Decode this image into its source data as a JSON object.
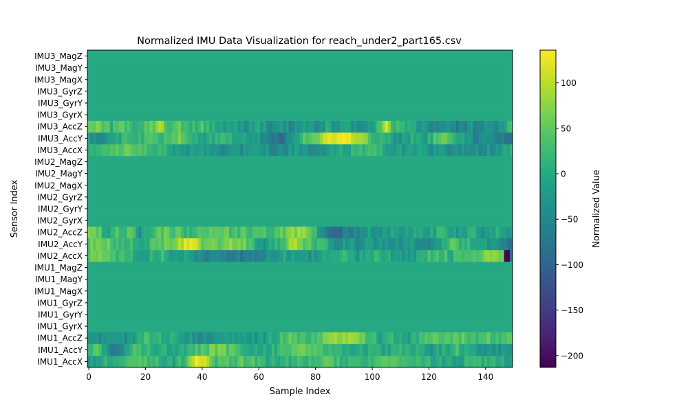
{
  "chart_data": {
    "type": "heatmap",
    "title": "Normalized IMU Data Visualization for reach_under2_part165.csv",
    "xlabel": "Sample Index",
    "ylabel": "Sensor Index",
    "colorbar_label": "Normalized Value",
    "colormap": "viridis",
    "x_range": [
      0,
      149
    ],
    "x_ticks": [
      0,
      20,
      40,
      60,
      80,
      100,
      120,
      140
    ],
    "color_range": [
      -213,
      136
    ],
    "colorbar_ticks": [
      100,
      50,
      0,
      -50,
      -100,
      -150,
      -200
    ],
    "num_samples": 150,
    "rows_bottom_to_top": [
      "IMU1_AccX",
      "IMU1_AccY",
      "IMU1_AccZ",
      "IMU1_GyrX",
      "IMU1_GyrY",
      "IMU1_GyrZ",
      "IMU1_MagX",
      "IMU1_MagY",
      "IMU1_MagZ",
      "IMU2_AccX",
      "IMU2_AccY",
      "IMU2_AccZ",
      "IMU2_GyrX",
      "IMU2_GyrY",
      "IMU2_GyrZ",
      "IMU2_MagX",
      "IMU2_MagY",
      "IMU2_MagZ",
      "IMU3_AccX",
      "IMU3_AccY",
      "IMU3_AccZ",
      "IMU3_GyrX",
      "IMU3_GyrY",
      "IMU3_GyrZ",
      "IMU3_MagX",
      "IMU3_MagY",
      "IMU3_MagZ"
    ],
    "constant_value": 0,
    "active_rows": {
      "IMU1_AccX": [
        [
          0,
          -20
        ],
        [
          5,
          0
        ],
        [
          10,
          25
        ],
        [
          20,
          35
        ],
        [
          25,
          15
        ],
        [
          30,
          0
        ],
        [
          35,
          40
        ],
        [
          38,
          115
        ],
        [
          42,
          95
        ],
        [
          45,
          30
        ],
        [
          55,
          40
        ],
        [
          65,
          0
        ],
        [
          75,
          20
        ],
        [
          85,
          35
        ],
        [
          95,
          10
        ],
        [
          105,
          30
        ],
        [
          115,
          20
        ],
        [
          125,
          0
        ],
        [
          130,
          -15
        ],
        [
          135,
          20
        ],
        [
          145,
          10
        ],
        [
          149,
          -20
        ]
      ],
      "IMU1_AccY": [
        [
          0,
          20
        ],
        [
          3,
          60
        ],
        [
          6,
          -20
        ],
        [
          8,
          -80
        ],
        [
          12,
          -40
        ],
        [
          16,
          40
        ],
        [
          20,
          20
        ],
        [
          25,
          10
        ],
        [
          30,
          0
        ],
        [
          38,
          30
        ],
        [
          45,
          60
        ],
        [
          55,
          20
        ],
        [
          62,
          0
        ],
        [
          70,
          30
        ],
        [
          75,
          60
        ],
        [
          80,
          45
        ],
        [
          85,
          25
        ],
        [
          90,
          10
        ],
        [
          95,
          0
        ],
        [
          100,
          10
        ],
        [
          105,
          -10
        ],
        [
          110,
          20
        ],
        [
          115,
          10
        ],
        [
          120,
          -30
        ],
        [
          125,
          0
        ],
        [
          130,
          20
        ],
        [
          140,
          -40
        ],
        [
          145,
          -30
        ],
        [
          149,
          -10
        ]
      ],
      "IMU1_AccZ": [
        [
          0,
          -50
        ],
        [
          5,
          -30
        ],
        [
          10,
          -25
        ],
        [
          15,
          -35
        ],
        [
          20,
          20
        ],
        [
          25,
          10
        ],
        [
          30,
          0
        ],
        [
          35,
          -20
        ],
        [
          40,
          -40
        ],
        [
          45,
          -35
        ],
        [
          50,
          -20
        ],
        [
          55,
          -30
        ],
        [
          62,
          -25
        ],
        [
          68,
          30
        ],
        [
          73,
          50
        ],
        [
          78,
          20
        ],
        [
          82,
          40
        ],
        [
          86,
          70
        ],
        [
          90,
          80
        ],
        [
          95,
          60
        ],
        [
          100,
          20
        ],
        [
          103,
          -5
        ],
        [
          108,
          10
        ],
        [
          112,
          -25
        ],
        [
          115,
          10
        ],
        [
          120,
          45
        ],
        [
          125,
          30
        ],
        [
          130,
          55
        ],
        [
          135,
          25
        ],
        [
          140,
          45
        ],
        [
          145,
          30
        ],
        [
          149,
          50
        ]
      ],
      "IMU2_AccX": [
        [
          0,
          40
        ],
        [
          5,
          60
        ],
        [
          10,
          30
        ],
        [
          15,
          20
        ],
        [
          18,
          -20
        ],
        [
          22,
          0
        ],
        [
          26,
          20
        ],
        [
          30,
          -20
        ],
        [
          35,
          0
        ],
        [
          38,
          -40
        ],
        [
          42,
          -60
        ],
        [
          47,
          -55
        ],
        [
          52,
          -60
        ],
        [
          56,
          -75
        ],
        [
          60,
          -60
        ],
        [
          65,
          -20
        ],
        [
          70,
          -10
        ],
        [
          75,
          -40
        ],
        [
          80,
          -20
        ],
        [
          85,
          0
        ],
        [
          90,
          20
        ],
        [
          95,
          -20
        ],
        [
          100,
          10
        ],
        [
          105,
          0
        ],
        [
          110,
          -30
        ],
        [
          115,
          -10
        ],
        [
          120,
          20
        ],
        [
          125,
          30
        ],
        [
          128,
          10
        ],
        [
          132,
          40
        ],
        [
          138,
          55
        ],
        [
          142,
          70
        ],
        [
          146,
          80
        ],
        [
          147,
          -210
        ],
        [
          148,
          -213
        ],
        [
          149,
          -80
        ]
      ],
      "IMU2_AccY": [
        [
          0,
          50
        ],
        [
          3,
          70
        ],
        [
          6,
          60
        ],
        [
          10,
          30
        ],
        [
          15,
          20
        ],
        [
          20,
          10
        ],
        [
          25,
          40
        ],
        [
          30,
          60
        ],
        [
          33,
          100
        ],
        [
          35,
          125
        ],
        [
          38,
          90
        ],
        [
          42,
          40
        ],
        [
          46,
          60
        ],
        [
          50,
          85
        ],
        [
          55,
          60
        ],
        [
          58,
          20
        ],
        [
          62,
          -20
        ],
        [
          66,
          10
        ],
        [
          70,
          50
        ],
        [
          72,
          90
        ],
        [
          75,
          60
        ],
        [
          78,
          40
        ],
        [
          82,
          20
        ],
        [
          85,
          -10
        ],
        [
          88,
          -35
        ],
        [
          92,
          -15
        ],
        [
          95,
          -40
        ],
        [
          100,
          -20
        ],
        [
          105,
          -30
        ],
        [
          110,
          -40
        ],
        [
          113,
          -15
        ],
        [
          117,
          -40
        ],
        [
          120,
          -45
        ],
        [
          125,
          -5
        ],
        [
          128,
          60
        ],
        [
          130,
          30
        ],
        [
          135,
          10
        ],
        [
          140,
          -20
        ],
        [
          145,
          -40
        ],
        [
          149,
          -80
        ]
      ],
      "IMU2_AccZ": [
        [
          0,
          60
        ],
        [
          4,
          40
        ],
        [
          6,
          -20
        ],
        [
          10,
          30
        ],
        [
          15,
          40
        ],
        [
          18,
          -30
        ],
        [
          22,
          30
        ],
        [
          26,
          50
        ],
        [
          30,
          40
        ],
        [
          35,
          20
        ],
        [
          40,
          50
        ],
        [
          45,
          60
        ],
        [
          50,
          40
        ],
        [
          55,
          30
        ],
        [
          60,
          20
        ],
        [
          65,
          30
        ],
        [
          70,
          60
        ],
        [
          75,
          80
        ],
        [
          80,
          20
        ],
        [
          83,
          -60
        ],
        [
          87,
          -90
        ],
        [
          91,
          -60
        ],
        [
          95,
          -50
        ],
        [
          100,
          -20
        ],
        [
          103,
          -40
        ],
        [
          106,
          -10
        ],
        [
          110,
          -30
        ],
        [
          115,
          0
        ],
        [
          120,
          -20
        ],
        [
          125,
          20
        ],
        [
          130,
          -25
        ],
        [
          135,
          10
        ],
        [
          140,
          -30
        ],
        [
          145,
          10
        ],
        [
          149,
          -40
        ]
      ],
      "IMU3_AccX": [
        [
          0,
          -10
        ],
        [
          5,
          30
        ],
        [
          10,
          50
        ],
        [
          15,
          55
        ],
        [
          20,
          20
        ],
        [
          25,
          35
        ],
        [
          30,
          -20
        ],
        [
          35,
          -30
        ],
        [
          40,
          -20
        ],
        [
          45,
          -40
        ],
        [
          50,
          -30
        ],
        [
          55,
          -35
        ],
        [
          60,
          -25
        ],
        [
          65,
          -40
        ],
        [
          70,
          -30
        ],
        [
          75,
          -20
        ],
        [
          80,
          -45
        ],
        [
          85,
          -10
        ],
        [
          90,
          0
        ],
        [
          95,
          15
        ],
        [
          100,
          30
        ],
        [
          105,
          0
        ],
        [
          110,
          -20
        ],
        [
          115,
          -15
        ],
        [
          120,
          -30
        ],
        [
          125,
          -40
        ],
        [
          130,
          -50
        ],
        [
          135,
          -30
        ],
        [
          140,
          -40
        ],
        [
          145,
          -25
        ],
        [
          149,
          20
        ]
      ],
      "IMU3_AccY": [
        [
          0,
          -20
        ],
        [
          3,
          -60
        ],
        [
          6,
          -30
        ],
        [
          10,
          -10
        ],
        [
          14,
          30
        ],
        [
          18,
          10
        ],
        [
          22,
          50
        ],
        [
          25,
          20
        ],
        [
          28,
          40
        ],
        [
          32,
          70
        ],
        [
          35,
          40
        ],
        [
          38,
          10
        ],
        [
          42,
          -10
        ],
        [
          46,
          20
        ],
        [
          50,
          0
        ],
        [
          55,
          -10
        ],
        [
          60,
          -30
        ],
        [
          64,
          -70
        ],
        [
          67,
          -90
        ],
        [
          70,
          -60
        ],
        [
          73,
          0
        ],
        [
          76,
          40
        ],
        [
          80,
          60
        ],
        [
          83,
          90
        ],
        [
          86,
          115
        ],
        [
          89,
          132
        ],
        [
          92,
          120
        ],
        [
          95,
          95
        ],
        [
          98,
          60
        ],
        [
          100,
          30
        ],
        [
          105,
          0
        ],
        [
          110,
          -30
        ],
        [
          115,
          10
        ],
        [
          118,
          -30
        ],
        [
          122,
          30
        ],
        [
          126,
          60
        ],
        [
          130,
          10
        ],
        [
          134,
          -30
        ],
        [
          137,
          -60
        ],
        [
          140,
          -20
        ],
        [
          145,
          -70
        ],
        [
          149,
          -85
        ]
      ],
      "IMU3_AccZ": [
        [
          0,
          40
        ],
        [
          4,
          60
        ],
        [
          8,
          20
        ],
        [
          12,
          40
        ],
        [
          16,
          10
        ],
        [
          20,
          30
        ],
        [
          23,
          60
        ],
        [
          25,
          100
        ],
        [
          28,
          30
        ],
        [
          32,
          45
        ],
        [
          36,
          20
        ],
        [
          40,
          30
        ],
        [
          44,
          10
        ],
        [
          48,
          -20
        ],
        [
          52,
          -15
        ],
        [
          56,
          -30
        ],
        [
          60,
          -10
        ],
        [
          64,
          -40
        ],
        [
          68,
          -25
        ],
        [
          72,
          -50
        ],
        [
          76,
          -20
        ],
        [
          80,
          -40
        ],
        [
          84,
          -10
        ],
        [
          88,
          -30
        ],
        [
          92,
          -20
        ],
        [
          96,
          -35
        ],
        [
          100,
          -10
        ],
        [
          103,
          40
        ],
        [
          105,
          110
        ],
        [
          107,
          30
        ],
        [
          110,
          10
        ],
        [
          115,
          -10
        ],
        [
          120,
          -50
        ],
        [
          125,
          -30
        ],
        [
          130,
          -60
        ],
        [
          135,
          -40
        ],
        [
          140,
          -50
        ],
        [
          145,
          -30
        ],
        [
          149,
          30
        ]
      ]
    }
  }
}
